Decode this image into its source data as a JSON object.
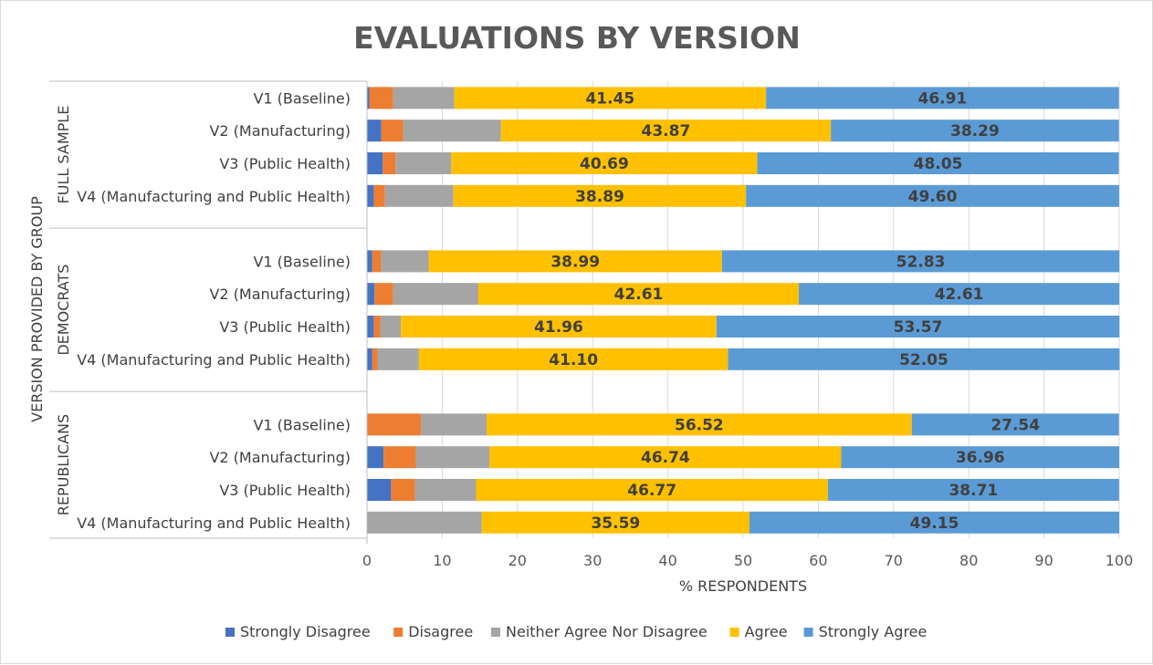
{
  "chart_data": {
    "type": "bar",
    "orientation": "horizontal",
    "stacked": true,
    "title": "EVALUATIONS BY VERSION",
    "xlabel": "% RESPONDENTS",
    "ylabel": "VERSION PROVIDED BY GROUP",
    "xlim": [
      0,
      100
    ],
    "xticks": [
      "0",
      "10",
      "20",
      "30",
      "40",
      "50",
      "60",
      "70",
      "80",
      "90",
      "100"
    ],
    "grid": true,
    "legend_position": "bottom",
    "colors": [
      "#4472c4",
      "#ed7d31",
      "#a5a5a5",
      "#ffc000",
      "#5b9bd5"
    ],
    "series_names": [
      "Strongly Disagree",
      "Disagree",
      "Neither Agree Nor Disagree",
      "Agree",
      "Strongly Agree"
    ],
    "groups": [
      {
        "name": "FULL SAMPLE",
        "rows": [
          {
            "label": "V1 (Baseline)",
            "values": [
              0.3,
              3.2,
              8.1,
              41.45,
              46.91
            ]
          },
          {
            "label": "V2 (Manufacturing)",
            "values": [
              1.9,
              2.9,
              13.0,
              43.87,
              38.29
            ]
          },
          {
            "label": "V3 (Public Health)",
            "values": [
              2.1,
              1.7,
              7.4,
              40.69,
              48.05
            ]
          },
          {
            "label": "V4 (Manufacturing and Public Health)",
            "values": [
              0.9,
              1.5,
              9.1,
              38.89,
              49.6
            ]
          }
        ]
      },
      {
        "name": "DEMOCRATS",
        "rows": [
          {
            "label": "V1 (Baseline)",
            "values": [
              0.7,
              1.2,
              6.3,
              38.99,
              52.83
            ]
          },
          {
            "label": "V2 (Manufacturing)",
            "values": [
              1.0,
              2.5,
              11.3,
              42.61,
              42.61
            ]
          },
          {
            "label": "V3 (Public Health)",
            "values": [
              0.9,
              0.9,
              2.7,
              41.96,
              53.57
            ]
          },
          {
            "label": "V4 (Manufacturing and Public Health)",
            "values": [
              0.7,
              0.7,
              5.5,
              41.1,
              52.05
            ]
          }
        ]
      },
      {
        "name": "REPUBLICANS",
        "rows": [
          {
            "label": "V1 (Baseline)",
            "values": [
              0.0,
              7.2,
              8.7,
              56.52,
              27.54
            ]
          },
          {
            "label": "V2 (Manufacturing)",
            "values": [
              2.2,
              4.3,
              9.8,
              46.74,
              36.96
            ]
          },
          {
            "label": "V3 (Public Health)",
            "values": [
              3.2,
              3.2,
              8.1,
              46.77,
              38.71
            ]
          },
          {
            "label": "V4 (Manufacturing and Public Health)",
            "values": [
              0.0,
              0.0,
              15.26,
              35.59,
              49.15
            ]
          }
        ]
      }
    ],
    "data_labels_series": [
      "Agree",
      "Strongly Agree"
    ]
  }
}
